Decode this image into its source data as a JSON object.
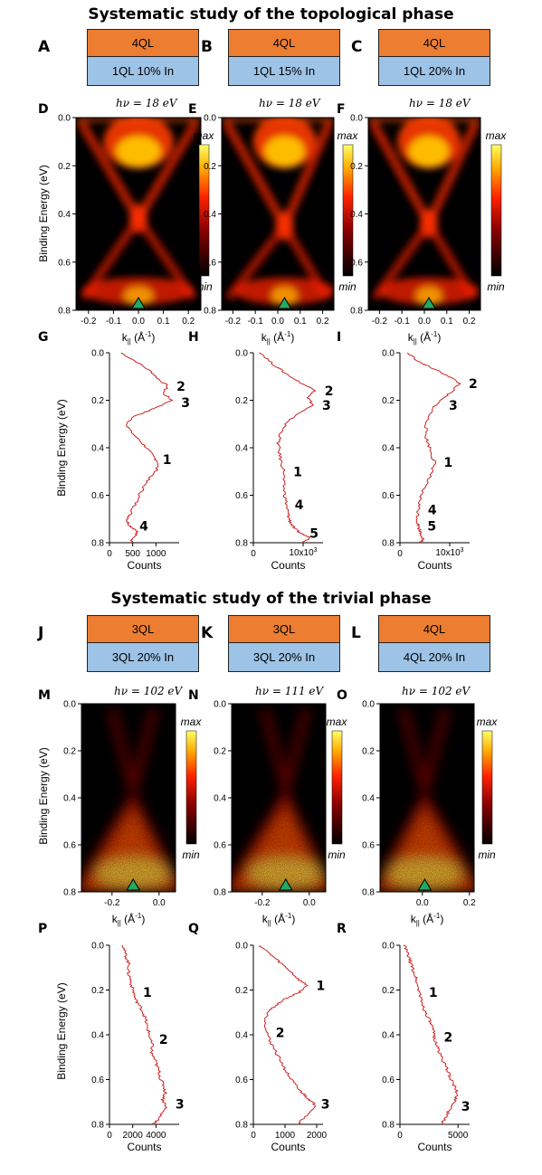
{
  "titles": {
    "topological": "Systematic study of the topological phase",
    "trivial": "Systematic study of the trivial phase"
  },
  "stacks": [
    {
      "letter": "A",
      "top": "4QL",
      "bottom": "1QL 10% In"
    },
    {
      "letter": "B",
      "top": "4QL",
      "bottom": "1QL 15% In"
    },
    {
      "letter": "C",
      "top": "4QL",
      "bottom": "1QL 20% In"
    },
    {
      "letter": "J",
      "top": "3QL",
      "bottom": "3QL 20% In"
    },
    {
      "letter": "K",
      "top": "3QL",
      "bottom": "3QL 20% In"
    },
    {
      "letter": "L",
      "top": "4QL",
      "bottom": "4QL 20% In"
    }
  ],
  "colorbar": {
    "max": "max",
    "min": "min"
  },
  "y_axis_label": "Binding Energy (eV)",
  "k_axis_label_main": "k",
  "k_axis_label_sub": "||",
  "k_axis_label_unit": " (Å",
  "k_axis_label_exp": "-1",
  "k_axis_label_close": ")",
  "counts_label": "Counts",
  "colors": {
    "orange": "#ED7D31",
    "blue": "#9DC3E6",
    "curve": "#CC2222",
    "marker": "#22AA66"
  },
  "chart_data": [
    {
      "type": "heatmap",
      "panel": "D",
      "hv": "hν = 18 eV",
      "phase": "topological",
      "xlim": [
        -0.25,
        0.25
      ],
      "ylim": [
        0.0,
        0.8
      ],
      "y_tick_labels": [
        "0.0",
        "0.2",
        "0.4",
        "0.6",
        "0.8"
      ],
      "x_ticks": [
        -0.2,
        -0.1,
        0.0,
        0.1,
        0.2
      ],
      "x_tick_labels": [
        "-0.2",
        "-0.1",
        "0.0",
        "0.1",
        "0.2"
      ],
      "dirac_point": {
        "k": 0.0,
        "E": 0.42
      },
      "marker_k": 0.0
    },
    {
      "type": "heatmap",
      "panel": "E",
      "hv": "hν = 18 eV",
      "phase": "topological",
      "xlim": [
        -0.25,
        0.25
      ],
      "ylim": [
        0.0,
        0.8
      ],
      "y_tick_labels": [
        "0.0",
        "0.2",
        "0.4",
        "0.6",
        "0.8"
      ],
      "x_ticks": [
        -0.2,
        -0.1,
        0.0,
        0.1,
        0.2
      ],
      "x_tick_labels": [
        "-0.2",
        "-0.1",
        "0.0",
        "0.1",
        "0.2"
      ],
      "dirac_point": {
        "k": 0.03,
        "E": 0.45
      },
      "marker_k": 0.03
    },
    {
      "type": "heatmap",
      "panel": "F",
      "hv": "hν = 18 eV",
      "phase": "topological",
      "xlim": [
        -0.25,
        0.25
      ],
      "ylim": [
        0.0,
        0.8
      ],
      "y_tick_labels": [
        "0.0",
        "0.2",
        "0.4",
        "0.6",
        "0.8"
      ],
      "x_ticks": [
        -0.2,
        -0.1,
        0.0,
        0.1,
        0.2
      ],
      "x_tick_labels": [
        "-0.2",
        "-0.1",
        "0.0",
        "0.1",
        "0.2"
      ],
      "dirac_point": {
        "k": 0.02,
        "E": 0.44
      },
      "marker_k": 0.02
    },
    {
      "type": "line",
      "panel": "G",
      "xlabel": "Counts",
      "ylim": [
        0.0,
        0.8
      ],
      "xlim": [
        0,
        1500
      ],
      "y_tick_labels": [
        "0.0",
        "0.2",
        "0.4",
        "0.6",
        "0.8"
      ],
      "x_ticks": [
        0,
        500,
        1000
      ],
      "x_tick_labels": [
        "0",
        "500",
        "1000"
      ],
      "x": [
        250,
        600,
        900,
        1050,
        1250,
        1150,
        1350,
        900,
        500,
        380,
        450,
        650,
        800,
        950,
        1050,
        1000,
        800,
        700,
        600,
        500,
        420,
        380,
        450,
        600,
        550,
        450
      ],
      "y": [
        0.0,
        0.04,
        0.08,
        0.11,
        0.14,
        0.17,
        0.2,
        0.24,
        0.27,
        0.3,
        0.33,
        0.37,
        0.4,
        0.44,
        0.46,
        0.5,
        0.54,
        0.58,
        0.62,
        0.66,
        0.69,
        0.71,
        0.73,
        0.75,
        0.77,
        0.8
      ],
      "peaks": [
        {
          "label": "2",
          "E": 0.14
        },
        {
          "label": "3",
          "E": 0.21
        },
        {
          "label": "1",
          "E": 0.45
        },
        {
          "label": "4",
          "E": 0.73
        }
      ]
    },
    {
      "type": "line",
      "panel": "H",
      "xlabel": "Counts",
      "ylim": [
        0.0,
        0.8
      ],
      "xlim": [
        0,
        14000
      ],
      "y_tick_labels": [
        "0.0",
        "0.2",
        "0.4",
        "0.6",
        "0.8"
      ],
      "x_scale_label": "10x10",
      "x_scale_exp": "3",
      "x_ticks": [
        0,
        10000
      ],
      "x_tick_labels": [
        "0",
        ""
      ],
      "x": [
        1500,
        3500,
        6000,
        9000,
        12500,
        11000,
        12000,
        8500,
        6500,
        5500,
        5000,
        5200,
        5600,
        6200,
        6000,
        6200,
        6500,
        6800,
        7000,
        7200,
        7600,
        8200,
        9500,
        11500,
        10000
      ],
      "y": [
        0.0,
        0.04,
        0.08,
        0.12,
        0.16,
        0.19,
        0.22,
        0.26,
        0.3,
        0.34,
        0.38,
        0.42,
        0.46,
        0.5,
        0.54,
        0.58,
        0.62,
        0.66,
        0.68,
        0.7,
        0.72,
        0.74,
        0.76,
        0.78,
        0.8
      ],
      "peaks": [
        {
          "label": "2",
          "E": 0.16
        },
        {
          "label": "3",
          "E": 0.22
        },
        {
          "label": "1",
          "E": 0.5
        },
        {
          "label": "4",
          "E": 0.64
        },
        {
          "label": "5",
          "E": 0.76
        }
      ]
    },
    {
      "type": "line",
      "panel": "I",
      "xlabel": "Counts",
      "ylim": [
        0.0,
        0.8
      ],
      "xlim": [
        0,
        14000
      ],
      "y_tick_labels": [
        "0.0",
        "0.2",
        "0.4",
        "0.6",
        "0.8"
      ],
      "x_scale_label": "10x10",
      "x_scale_exp": "3",
      "x_ticks": [
        0,
        10000
      ],
      "x_tick_labels": [
        "0",
        ""
      ],
      "x": [
        1500,
        4000,
        7000,
        10000,
        12000,
        10000,
        8000,
        6500,
        5500,
        5200,
        5300,
        6000,
        6500,
        7000,
        6500,
        5500,
        4500,
        4000,
        3800,
        3600,
        3500,
        3700,
        4200,
        4600,
        4200
      ],
      "y": [
        0.0,
        0.04,
        0.07,
        0.1,
        0.13,
        0.17,
        0.2,
        0.24,
        0.28,
        0.32,
        0.36,
        0.4,
        0.44,
        0.46,
        0.5,
        0.54,
        0.58,
        0.62,
        0.65,
        0.68,
        0.71,
        0.73,
        0.76,
        0.78,
        0.8
      ],
      "peaks": [
        {
          "label": "2",
          "E": 0.13
        },
        {
          "label": "3",
          "E": 0.22
        },
        {
          "label": "1",
          "E": 0.46
        },
        {
          "label": "4",
          "E": 0.66
        },
        {
          "label": "5",
          "E": 0.73
        }
      ]
    },
    {
      "type": "heatmap",
      "panel": "M",
      "hv": "hν = 102 eV",
      "phase": "trivial",
      "xlim": [
        -0.33,
        0.07
      ],
      "ylim": [
        0.0,
        0.8
      ],
      "y_tick_labels": [
        "0.0",
        "0.2",
        "0.4",
        "0.6",
        "0.8"
      ],
      "x_ticks": [
        -0.2,
        0.0
      ],
      "x_tick_labels": [
        "-0.2",
        "0.0"
      ],
      "dirac_point": {
        "k": -0.11,
        "E": 0.37
      },
      "marker_k": -0.11
    },
    {
      "type": "heatmap",
      "panel": "N",
      "hv": "hν = 111 eV",
      "phase": "trivial",
      "xlim": [
        -0.33,
        0.07
      ],
      "ylim": [
        0.0,
        0.8
      ],
      "y_tick_labels": [
        "0.0",
        "0.2",
        "0.4",
        "0.6",
        "0.8"
      ],
      "x_ticks": [
        -0.2,
        0.0
      ],
      "x_tick_labels": [
        "-0.2",
        "0.0"
      ],
      "dirac_point": {
        "k": -0.1,
        "E": 0.36
      },
      "marker_k": -0.1
    },
    {
      "type": "heatmap",
      "panel": "O",
      "hv": "hν = 102 eV",
      "phase": "trivial",
      "xlim": [
        -0.18,
        0.22
      ],
      "ylim": [
        0.0,
        0.8
      ],
      "y_tick_labels": [
        "0.0",
        "0.2",
        "0.4",
        "0.6",
        "0.8"
      ],
      "x_ticks": [
        0.0,
        0.2
      ],
      "x_tick_labels": [
        "0.0",
        "0.2"
      ],
      "dirac_point": {
        "k": 0.01,
        "E": 0.37
      },
      "marker_k": 0.01
    },
    {
      "type": "line",
      "panel": "P",
      "xlabel": "Counts",
      "ylim": [
        0.0,
        0.8
      ],
      "xlim": [
        0,
        6000
      ],
      "y_tick_labels": [
        "0.0",
        "0.2",
        "0.4",
        "0.6",
        "0.8"
      ],
      "x_ticks": [
        0,
        2000,
        4000
      ],
      "x_tick_labels": [
        "0",
        "2000",
        "4000"
      ],
      "x": [
        1200,
        1300,
        1500,
        1700,
        1600,
        1800,
        1900,
        2100,
        2200,
        2600,
        2900,
        3100,
        3200,
        3400,
        3500,
        3700,
        3600,
        3900,
        4100,
        4300,
        4400,
        4700,
        4800,
        4600,
        4900,
        4500,
        4200,
        3800
      ],
      "y": [
        0.0,
        0.03,
        0.06,
        0.09,
        0.12,
        0.15,
        0.18,
        0.21,
        0.24,
        0.27,
        0.3,
        0.33,
        0.36,
        0.39,
        0.42,
        0.45,
        0.48,
        0.51,
        0.54,
        0.57,
        0.6,
        0.63,
        0.66,
        0.69,
        0.72,
        0.75,
        0.78,
        0.8
      ],
      "peaks": [
        {
          "label": "1",
          "E": 0.21
        },
        {
          "label": "2",
          "E": 0.42
        },
        {
          "label": "3",
          "E": 0.71
        }
      ]
    },
    {
      "type": "line",
      "panel": "Q",
      "xlabel": "Counts",
      "ylim": [
        0.0,
        0.8
      ],
      "xlim": [
        0,
        2200
      ],
      "y_tick_labels": [
        "0.0",
        "0.2",
        "0.4",
        "0.6",
        "0.8"
      ],
      "x_ticks": [
        0,
        1000,
        2000
      ],
      "x_tick_labels": [
        "0",
        "1000",
        "2000"
      ],
      "x": [
        200,
        450,
        700,
        950,
        1200,
        1400,
        1700,
        1450,
        1000,
        700,
        450,
        380,
        420,
        500,
        650,
        800,
        950,
        1100,
        1250,
        1400,
        1550,
        1700,
        1850,
        2000,
        1700,
        1400
      ],
      "y": [
        0.0,
        0.03,
        0.06,
        0.09,
        0.12,
        0.15,
        0.18,
        0.21,
        0.24,
        0.27,
        0.3,
        0.34,
        0.38,
        0.42,
        0.46,
        0.5,
        0.54,
        0.58,
        0.61,
        0.64,
        0.66,
        0.68,
        0.7,
        0.72,
        0.76,
        0.8
      ],
      "peaks": [
        {
          "label": "1",
          "E": 0.18
        },
        {
          "label": "2",
          "E": 0.39
        },
        {
          "label": "3",
          "E": 0.71
        }
      ]
    },
    {
      "type": "line",
      "panel": "R",
      "xlabel": "Counts",
      "ylim": [
        0.0,
        0.8
      ],
      "xlim": [
        0,
        6000
      ],
      "y_tick_labels": [
        "0.0",
        "0.2",
        "0.4",
        "0.6",
        "0.8"
      ],
      "x_ticks": [
        0,
        5000
      ],
      "x_tick_labels": [
        "0",
        "5000"
      ],
      "x": [
        400,
        600,
        800,
        1000,
        1200,
        1400,
        1500,
        1700,
        1800,
        2000,
        2200,
        2500,
        2700,
        2900,
        3000,
        3200,
        3400,
        3700,
        3900,
        4200,
        4400,
        4700,
        4900,
        4800,
        4500,
        4100,
        3800,
        3600
      ],
      "y": [
        0.0,
        0.03,
        0.06,
        0.09,
        0.12,
        0.15,
        0.18,
        0.21,
        0.24,
        0.27,
        0.3,
        0.33,
        0.36,
        0.39,
        0.42,
        0.45,
        0.48,
        0.51,
        0.54,
        0.57,
        0.6,
        0.63,
        0.66,
        0.69,
        0.72,
        0.75,
        0.78,
        0.8
      ],
      "peaks": [
        {
          "label": "1",
          "E": 0.21
        },
        {
          "label": "2",
          "E": 0.41
        },
        {
          "label": "3",
          "E": 0.72
        }
      ]
    }
  ]
}
